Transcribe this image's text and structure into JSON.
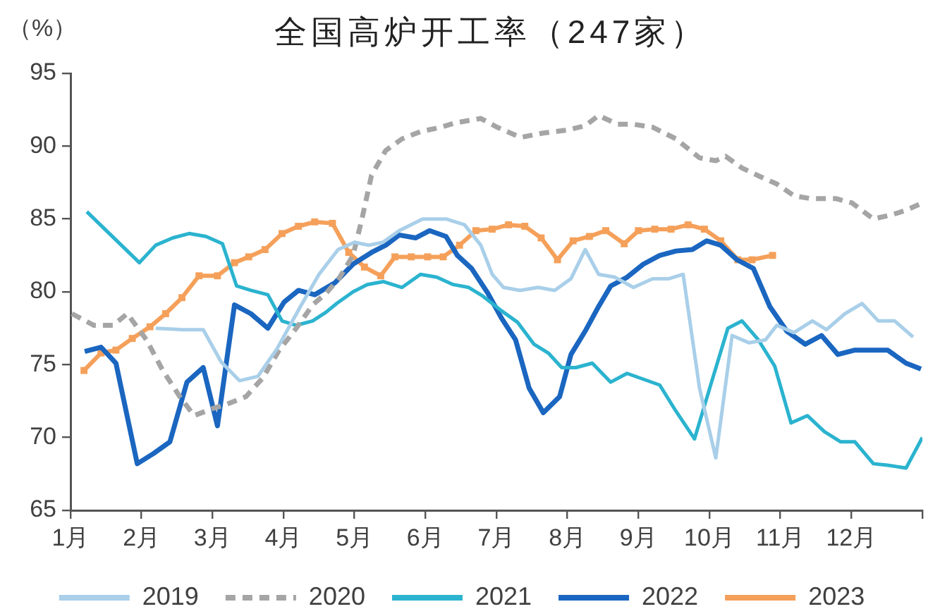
{
  "chart_data": {
    "type": "line",
    "title": "全国高炉开工率（247家）",
    "ylabel": "（%）",
    "xlim": [
      1,
      13
    ],
    "xticks": [
      {
        "value": 1,
        "label": "1月"
      },
      {
        "value": 2,
        "label": "2月"
      },
      {
        "value": 3,
        "label": "3月"
      },
      {
        "value": 4,
        "label": "4月"
      },
      {
        "value": 5,
        "label": "5月"
      },
      {
        "value": 6,
        "label": "6月"
      },
      {
        "value": 7,
        "label": "7月"
      },
      {
        "value": 8,
        "label": "8月"
      },
      {
        "value": 9,
        "label": "9月"
      },
      {
        "value": 10,
        "label": "10月"
      },
      {
        "value": 11,
        "label": "11月"
      },
      {
        "value": 12,
        "label": "12月"
      },
      {
        "value": 13,
        "label": null
      }
    ],
    "ylim": [
      65,
      95
    ],
    "yticks": [
      65,
      70,
      75,
      80,
      85,
      90,
      95
    ],
    "grid": false,
    "legend": "bottom",
    "series": [
      {
        "name": "2019",
        "color": "#a9cfe9",
        "x": [
          2.2,
          2.57,
          2.87,
          3.12,
          3.38,
          3.64,
          3.91,
          4.24,
          4.5,
          4.77,
          5.0,
          5.2,
          5.4,
          5.63,
          5.96,
          6.29,
          6.55,
          6.78,
          6.94,
          7.1,
          7.33,
          7.59,
          7.82,
          8.05,
          8.25,
          8.44,
          8.67,
          8.93,
          9.2,
          9.43,
          9.63,
          9.86,
          10.09,
          10.32,
          10.56,
          10.79,
          10.95,
          11.19,
          11.45,
          11.65,
          11.91,
          12.15,
          12.38,
          12.61,
          12.87
        ],
        "values": [
          77.5,
          77.4,
          77.4,
          75.2,
          73.9,
          74.2,
          76.1,
          79.0,
          81.2,
          82.9,
          83.4,
          83.2,
          83.4,
          84.2,
          85.0,
          85.0,
          84.6,
          83.2,
          81.2,
          80.3,
          80.1,
          80.3,
          80.1,
          80.9,
          82.9,
          81.2,
          81.0,
          80.3,
          80.9,
          80.9,
          81.2,
          73.4,
          68.6,
          77.0,
          76.5,
          76.7,
          77.7,
          77.2,
          78.0,
          77.4,
          78.5,
          79.2,
          78.0,
          78.0,
          76.9
        ]
      },
      {
        "name": "2020",
        "color": "#a5a5a5",
        "line_style": "dashed",
        "x": [
          1.02,
          1.33,
          1.6,
          1.8,
          2.07,
          2.3,
          2.54,
          2.74,
          3.01,
          3.21,
          3.47,
          3.71,
          3.94,
          4.18,
          4.41,
          4.6,
          4.78,
          4.98,
          5.11,
          5.24,
          5.44,
          5.67,
          5.93,
          6.22,
          6.42,
          6.78,
          7.01,
          7.34,
          7.66,
          7.99,
          8.25,
          8.44,
          8.71,
          8.93,
          9.2,
          9.53,
          9.86,
          10.09,
          10.23,
          10.46,
          10.72,
          10.95,
          11.19,
          11.42,
          11.78,
          12.01,
          12.31,
          12.58,
          12.77,
          13.0
        ],
        "values": [
          78.5,
          77.7,
          77.7,
          78.5,
          76.7,
          74.6,
          72.8,
          71.5,
          72.0,
          72.3,
          72.8,
          74.1,
          76.0,
          77.5,
          79.1,
          79.9,
          80.9,
          82.5,
          85.1,
          88.0,
          89.7,
          90.5,
          91.0,
          91.3,
          91.6,
          91.9,
          91.3,
          90.6,
          90.9,
          91.1,
          91.4,
          92.1,
          91.5,
          91.5,
          91.3,
          90.5,
          89.2,
          89.0,
          89.3,
          88.5,
          87.9,
          87.4,
          86.6,
          86.4,
          86.4,
          86.1,
          85.0,
          85.3,
          85.6,
          86.1
        ]
      },
      {
        "name": "2021",
        "color": "#2bb3cf",
        "x": [
          1.23,
          1.97,
          2.2,
          2.44,
          2.67,
          2.91,
          3.14,
          3.34,
          3.54,
          3.78,
          3.98,
          4.18,
          4.41,
          4.6,
          4.75,
          4.98,
          5.18,
          5.41,
          5.67,
          5.93,
          6.16,
          6.39,
          6.61,
          6.81,
          7.07,
          7.3,
          7.53,
          7.73,
          7.92,
          8.12,
          8.35,
          8.61,
          8.84,
          9.07,
          9.3,
          9.53,
          9.79,
          10.03,
          10.26,
          10.46,
          10.69,
          10.92,
          11.15,
          11.38,
          11.62,
          11.85,
          12.05,
          12.31,
          12.51,
          12.77,
          13.0
        ],
        "values": [
          85.5,
          82.0,
          83.2,
          83.7,
          84.0,
          83.8,
          83.3,
          80.4,
          80.1,
          79.8,
          78.0,
          77.7,
          78.0,
          78.6,
          79.2,
          80.0,
          80.5,
          80.7,
          80.3,
          81.2,
          81.0,
          80.5,
          80.3,
          79.7,
          78.7,
          77.9,
          76.4,
          75.8,
          74.8,
          74.8,
          75.1,
          73.8,
          74.4,
          74.0,
          73.6,
          71.8,
          69.9,
          73.8,
          77.5,
          78.0,
          76.7,
          74.9,
          71.0,
          71.5,
          70.4,
          69.7,
          69.7,
          68.2,
          68.1,
          67.9,
          70.0
        ]
      },
      {
        "name": "2022",
        "color": "#1a66c0",
        "x": [
          1.2,
          1.43,
          1.64,
          1.94,
          2.17,
          2.4,
          2.64,
          2.87,
          3.07,
          3.31,
          3.54,
          3.78,
          4.01,
          4.21,
          4.44,
          4.72,
          4.98,
          5.24,
          5.44,
          5.63,
          5.86,
          6.06,
          6.29,
          6.45,
          6.65,
          6.88,
          7.07,
          7.27,
          7.46,
          7.66,
          7.89,
          8.05,
          8.25,
          8.44,
          8.61,
          8.84,
          9.07,
          9.3,
          9.53,
          9.76,
          9.96,
          10.16,
          10.39,
          10.62,
          10.85,
          11.09,
          11.35,
          11.58,
          11.81,
          12.05,
          12.51,
          12.77,
          12.98
        ],
        "values": [
          75.9,
          76.2,
          75.1,
          68.2,
          68.9,
          69.7,
          73.8,
          74.8,
          70.8,
          79.1,
          78.5,
          77.5,
          79.3,
          80.1,
          79.8,
          80.6,
          81.9,
          82.7,
          83.2,
          83.9,
          83.7,
          84.2,
          83.8,
          82.5,
          81.6,
          79.9,
          78.2,
          76.7,
          73.4,
          71.7,
          72.8,
          75.7,
          77.3,
          79.0,
          80.4,
          81.0,
          81.9,
          82.5,
          82.8,
          82.9,
          83.5,
          83.2,
          82.2,
          81.6,
          79.0,
          77.3,
          76.4,
          77.0,
          75.7,
          76.0,
          76.0,
          75.1,
          74.7
        ]
      },
      {
        "name": "2023",
        "color": "#f5a05a",
        "marker": "square",
        "x": [
          1.19,
          1.43,
          1.64,
          1.87,
          2.12,
          2.34,
          2.57,
          2.81,
          3.07,
          3.31,
          3.51,
          3.74,
          3.98,
          4.21,
          4.44,
          4.69,
          4.92,
          5.14,
          5.37,
          5.57,
          5.8,
          6.03,
          6.25,
          6.48,
          6.71,
          6.94,
          7.17,
          7.4,
          7.63,
          7.86,
          8.08,
          8.31,
          8.54,
          8.8,
          9.0,
          9.23,
          9.46,
          9.7,
          9.93,
          10.16,
          10.4,
          10.6,
          10.89
        ],
        "values": [
          74.6,
          75.8,
          76.0,
          76.8,
          77.6,
          78.5,
          79.6,
          81.1,
          81.1,
          82.0,
          82.4,
          82.9,
          84.0,
          84.5,
          84.8,
          84.7,
          82.7,
          81.7,
          81.1,
          82.4,
          82.4,
          82.4,
          82.4,
          83.2,
          84.2,
          84.3,
          84.6,
          84.5,
          83.7,
          82.2,
          83.5,
          83.8,
          84.2,
          83.3,
          84.2,
          84.3,
          84.3,
          84.6,
          84.3,
          83.5,
          82.2,
          82.2,
          82.5
        ]
      }
    ]
  }
}
